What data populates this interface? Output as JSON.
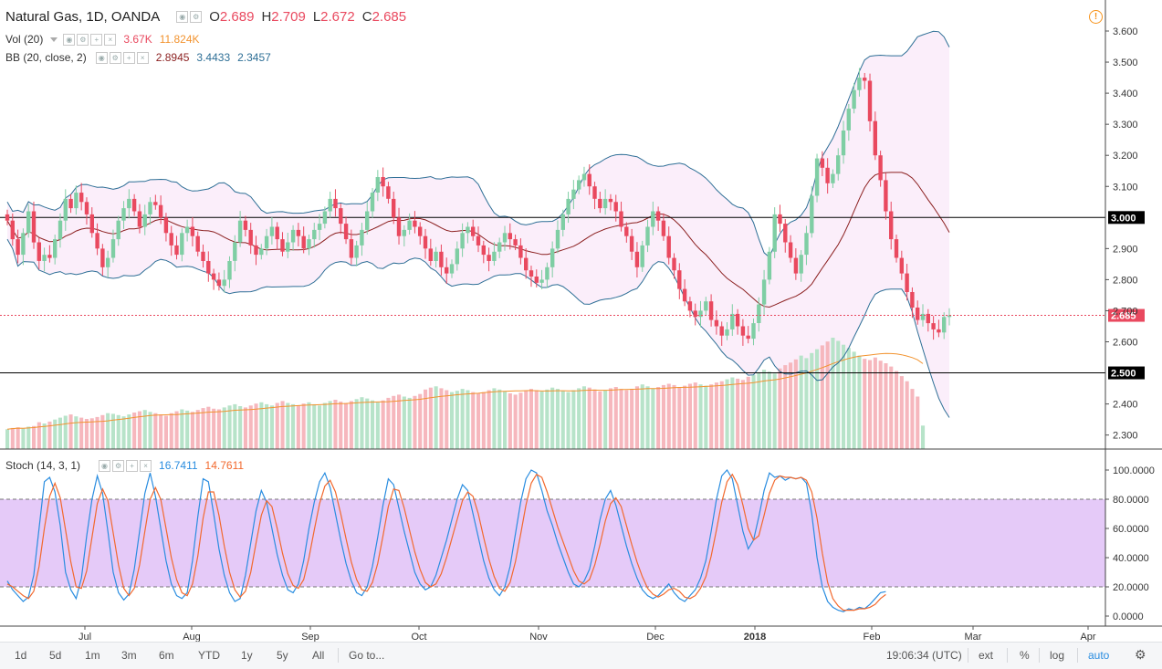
{
  "header": {
    "symbol": "Natural Gas, 1D, OANDA",
    "ohlc": [
      {
        "k": "O",
        "v": "2.689"
      },
      {
        "k": "H",
        "v": "2.709"
      },
      {
        "k": "L",
        "v": "2.672"
      },
      {
        "k": "C",
        "v": "2.685"
      }
    ]
  },
  "indicators": {
    "vol": {
      "name": "Vol (20)",
      "v1": "3.67K",
      "v2": "11.824K"
    },
    "bb": {
      "name": "BB (20, close, 2)",
      "v1": "2.8945",
      "v2": "3.4433",
      "v3": "2.3457"
    },
    "stoch": {
      "name": "Stoch (14, 3, 1)",
      "v1": "16.7411",
      "v2": "14.7611"
    }
  },
  "colors": {
    "up": "#7fcea4",
    "down": "#e9495f",
    "up_vol": "#b7e3c9",
    "down_vol": "#f6b7bd",
    "bb_band": "#2e6f96",
    "bb_basis": "#8b1f1f",
    "bb_fill": "#fbeefa",
    "stoch_k": "#2a8de0",
    "stoch_d": "#f2692e",
    "stoch_fill": "#e5caf8",
    "vol_ma": "#f2932f",
    "price_label": "#e9495f"
  },
  "chart_data": [
    {
      "type": "candlestick",
      "title": "Natural Gas, 1D, OANDA",
      "ylim": [
        2.28,
        3.65
      ],
      "y_ticks": [
        "3.600",
        "3.500",
        "3.400",
        "3.300",
        "3.200",
        "3.100",
        "3.000",
        "2.900",
        "2.800",
        "2.700",
        "2.600",
        "2.500",
        "2.400",
        "2.300"
      ],
      "x_labels": [
        "Jul",
        "Aug",
        "Sep",
        "Oct",
        "Nov",
        "Dec",
        "2018",
        "Feb",
        "Mar",
        "Apr"
      ],
      "last_price_label": "2.685",
      "horizontal_lines": [
        {
          "value": 3.0,
          "label": "3.000"
        },
        {
          "value": 2.5,
          "label": "2.500"
        }
      ],
      "close": [
        2.99,
        2.93,
        2.88,
        2.95,
        3.02,
        2.92,
        2.86,
        2.88,
        2.87,
        2.93,
        2.99,
        3.06,
        3.03,
        3.08,
        3.05,
        3.01,
        2.95,
        2.9,
        2.84,
        2.87,
        2.93,
        2.99,
        3.03,
        3.06,
        3.02,
        2.97,
        3.01,
        3.05,
        3.04,
        3.0,
        2.95,
        2.91,
        2.88,
        2.95,
        2.97,
        2.94,
        2.89,
        2.86,
        2.82,
        2.8,
        2.78,
        2.8,
        2.86,
        2.92,
        2.99,
        2.96,
        2.91,
        2.88,
        2.9,
        2.94,
        2.97,
        2.93,
        2.89,
        2.92,
        2.96,
        2.94,
        2.9,
        2.93,
        2.96,
        2.98,
        3.02,
        3.06,
        3.03,
        2.98,
        2.93,
        2.87,
        2.91,
        2.96,
        3.02,
        3.08,
        3.13,
        3.1,
        3.06,
        3.0,
        2.94,
        2.96,
        2.99,
        2.97,
        2.94,
        2.9,
        2.86,
        2.89,
        2.84,
        2.82,
        2.85,
        2.9,
        2.95,
        2.97,
        2.94,
        2.91,
        2.88,
        2.86,
        2.89,
        2.92,
        2.95,
        2.93,
        2.91,
        2.87,
        2.83,
        2.81,
        2.79,
        2.8,
        2.84,
        2.9,
        2.96,
        3.01,
        3.06,
        3.09,
        3.12,
        3.14,
        3.1,
        3.06,
        3.03,
        3.06,
        3.05,
        3.02,
        2.97,
        2.94,
        2.89,
        2.84,
        2.91,
        2.97,
        3.02,
        2.99,
        2.94,
        2.87,
        2.83,
        2.77,
        2.73,
        2.7,
        2.68,
        2.7,
        2.73,
        2.67,
        2.65,
        2.62,
        2.64,
        2.69,
        2.65,
        2.62,
        2.61,
        2.66,
        2.72,
        2.8,
        2.89,
        3.01,
        2.98,
        2.92,
        2.87,
        2.82,
        2.88,
        2.95,
        3.07,
        3.19,
        3.16,
        3.11,
        3.14,
        3.2,
        3.28,
        3.35,
        3.41,
        3.45,
        3.44,
        3.31,
        3.2,
        3.12,
        3.02,
        2.93,
        2.87,
        2.82,
        2.76,
        2.71,
        2.67,
        2.69,
        2.66,
        2.64,
        2.63,
        2.68,
        2.685
      ],
      "volume_k": [
        3.1,
        3.3,
        3.4,
        3.2,
        3.5,
        3.6,
        4.2,
        4.0,
        4.3,
        4.6,
        4.9,
        5.2,
        5.4,
        5.1,
        4.9,
        4.7,
        4.8,
        5.0,
        5.3,
        5.6,
        5.5,
        5.3,
        5.1,
        5.4,
        5.7,
        5.9,
        6.1,
        5.8,
        5.6,
        5.4,
        5.2,
        5.6,
        5.9,
        6.2,
        6.0,
        5.8,
        6.1,
        6.4,
        6.6,
        6.3,
        6.2,
        6.5,
        6.8,
        7.0,
        6.7,
        6.5,
        6.8,
        7.1,
        7.3,
        7.0,
        6.8,
        7.2,
        7.5,
        7.2,
        7.0,
        6.8,
        7.1,
        7.3,
        7.0,
        6.8,
        7.2,
        7.5,
        7.7,
        7.4,
        7.2,
        7.5,
        7.8,
        8.1,
        7.9,
        7.6,
        7.3,
        7.6,
        8.0,
        8.3,
        8.5,
        8.2,
        8.0,
        8.3,
        8.6,
        9.3,
        9.6,
        9.8,
        9.5,
        9.2,
        8.9,
        9.1,
        9.4,
        9.2,
        8.9,
        8.7,
        8.9,
        9.2,
        9.5,
        9.3,
        9.0,
        8.7,
        8.5,
        8.8,
        9.1,
        9.4,
        9.2,
        9.0,
        9.3,
        9.6,
        9.4,
        9.1,
        8.9,
        9.2,
        9.5,
        9.8,
        9.6,
        9.3,
        9.0,
        9.2,
        9.5,
        9.7,
        9.4,
        9.2,
        9.4,
        9.8,
        10.1,
        9.8,
        9.5,
        9.7,
        10.0,
        10.2,
        10.0,
        9.7,
        9.9,
        10.2,
        10.4,
        10.1,
        9.9,
        10.1,
        10.4,
        10.6,
        10.9,
        11.2,
        11.0,
        10.8,
        11.3,
        11.6,
        12.0,
        12.4,
        12.1,
        11.8,
        12.6,
        13.1,
        13.5,
        14.0,
        14.6,
        14.2,
        15.0,
        15.6,
        16.2,
        16.8,
        17.4,
        16.9,
        16.3,
        15.8,
        15.2,
        14.6,
        14.1,
        13.9,
        14.3,
        13.8,
        13.4,
        12.9,
        12.2,
        11.4,
        10.6,
        9.4,
        8.2,
        3.67
      ],
      "stoch_k": [
        24,
        18,
        14,
        10,
        13,
        28,
        60,
        92,
        95,
        85,
        62,
        30,
        18,
        12,
        26,
        55,
        80,
        96,
        84,
        58,
        30,
        16,
        11,
        15,
        32,
        58,
        84,
        98,
        82,
        60,
        38,
        22,
        14,
        12,
        16,
        38,
        68,
        94,
        92,
        70,
        46,
        28,
        16,
        10,
        12,
        28,
        50,
        72,
        86,
        78,
        60,
        42,
        28,
        18,
        16,
        22,
        38,
        60,
        78,
        92,
        98,
        88,
        70,
        52,
        36,
        24,
        16,
        14,
        20,
        34,
        54,
        76,
        94,
        90,
        74,
        58,
        44,
        30,
        22,
        18,
        20,
        28,
        40,
        52,
        66,
        80,
        90,
        86,
        70,
        54,
        38,
        26,
        18,
        14,
        20,
        34,
        56,
        78,
        94,
        100,
        98,
        86,
        72,
        62,
        50,
        40,
        30,
        22,
        20,
        24,
        32,
        48,
        66,
        80,
        86,
        76,
        62,
        48,
        36,
        26,
        18,
        14,
        12,
        14,
        18,
        22,
        16,
        12,
        10,
        14,
        18,
        26,
        38,
        58,
        80,
        96,
        100,
        94,
        76,
        58,
        46,
        52,
        68,
        86,
        98,
        95,
        96,
        93,
        95,
        94,
        95,
        91,
        70,
        40,
        20,
        10,
        6,
        4,
        3,
        5,
        4,
        6,
        5,
        8,
        12,
        16,
        16.74
      ],
      "stoch_d": [
        22,
        20,
        17,
        14,
        12,
        17,
        34,
        60,
        82,
        91,
        81,
        59,
        37,
        20,
        19,
        31,
        54,
        77,
        87,
        79,
        57,
        35,
        19,
        14,
        19,
        35,
        58,
        80,
        88,
        80,
        60,
        40,
        25,
        16,
        14,
        22,
        41,
        67,
        85,
        85,
        69,
        48,
        30,
        18,
        13,
        17,
        30,
        50,
        69,
        79,
        75,
        60,
        43,
        29,
        21,
        19,
        25,
        40,
        59,
        77,
        89,
        93,
        85,
        70,
        53,
        37,
        25,
        18,
        17,
        23,
        36,
        55,
        75,
        87,
        86,
        74,
        59,
        44,
        32,
        23,
        20,
        22,
        29,
        40,
        53,
        66,
        79,
        85,
        82,
        70,
        54,
        39,
        27,
        19,
        17,
        23,
        37,
        56,
        76,
        91,
        97,
        95,
        85,
        73,
        61,
        51,
        41,
        31,
        24,
        22,
        25,
        35,
        49,
        65,
        77,
        81,
        75,
        62,
        49,
        37,
        27,
        19,
        15,
        13,
        15,
        18,
        19,
        17,
        13,
        12,
        14,
        19,
        27,
        41,
        59,
        78,
        92,
        97,
        90,
        76,
        60,
        52,
        55,
        69,
        84,
        93,
        96,
        95,
        95,
        94,
        95,
        93,
        85,
        67,
        43,
        23,
        12,
        7,
        4,
        4,
        4,
        5,
        5,
        6,
        8,
        12,
        14.76
      ],
      "stoch_ticks": [
        "100.0000",
        "80.0000",
        "60.0000",
        "40.0000",
        "20.0000",
        "0.0000"
      ]
    }
  ],
  "bottom_bar": {
    "ranges": [
      "1d",
      "5d",
      "1m",
      "3m",
      "6m",
      "YTD",
      "1y",
      "5y",
      "All"
    ],
    "goto": "Go to...",
    "time": "19:06:34 (UTC)",
    "ext": "ext",
    "pct": "%",
    "log": "log",
    "auto": "auto"
  }
}
